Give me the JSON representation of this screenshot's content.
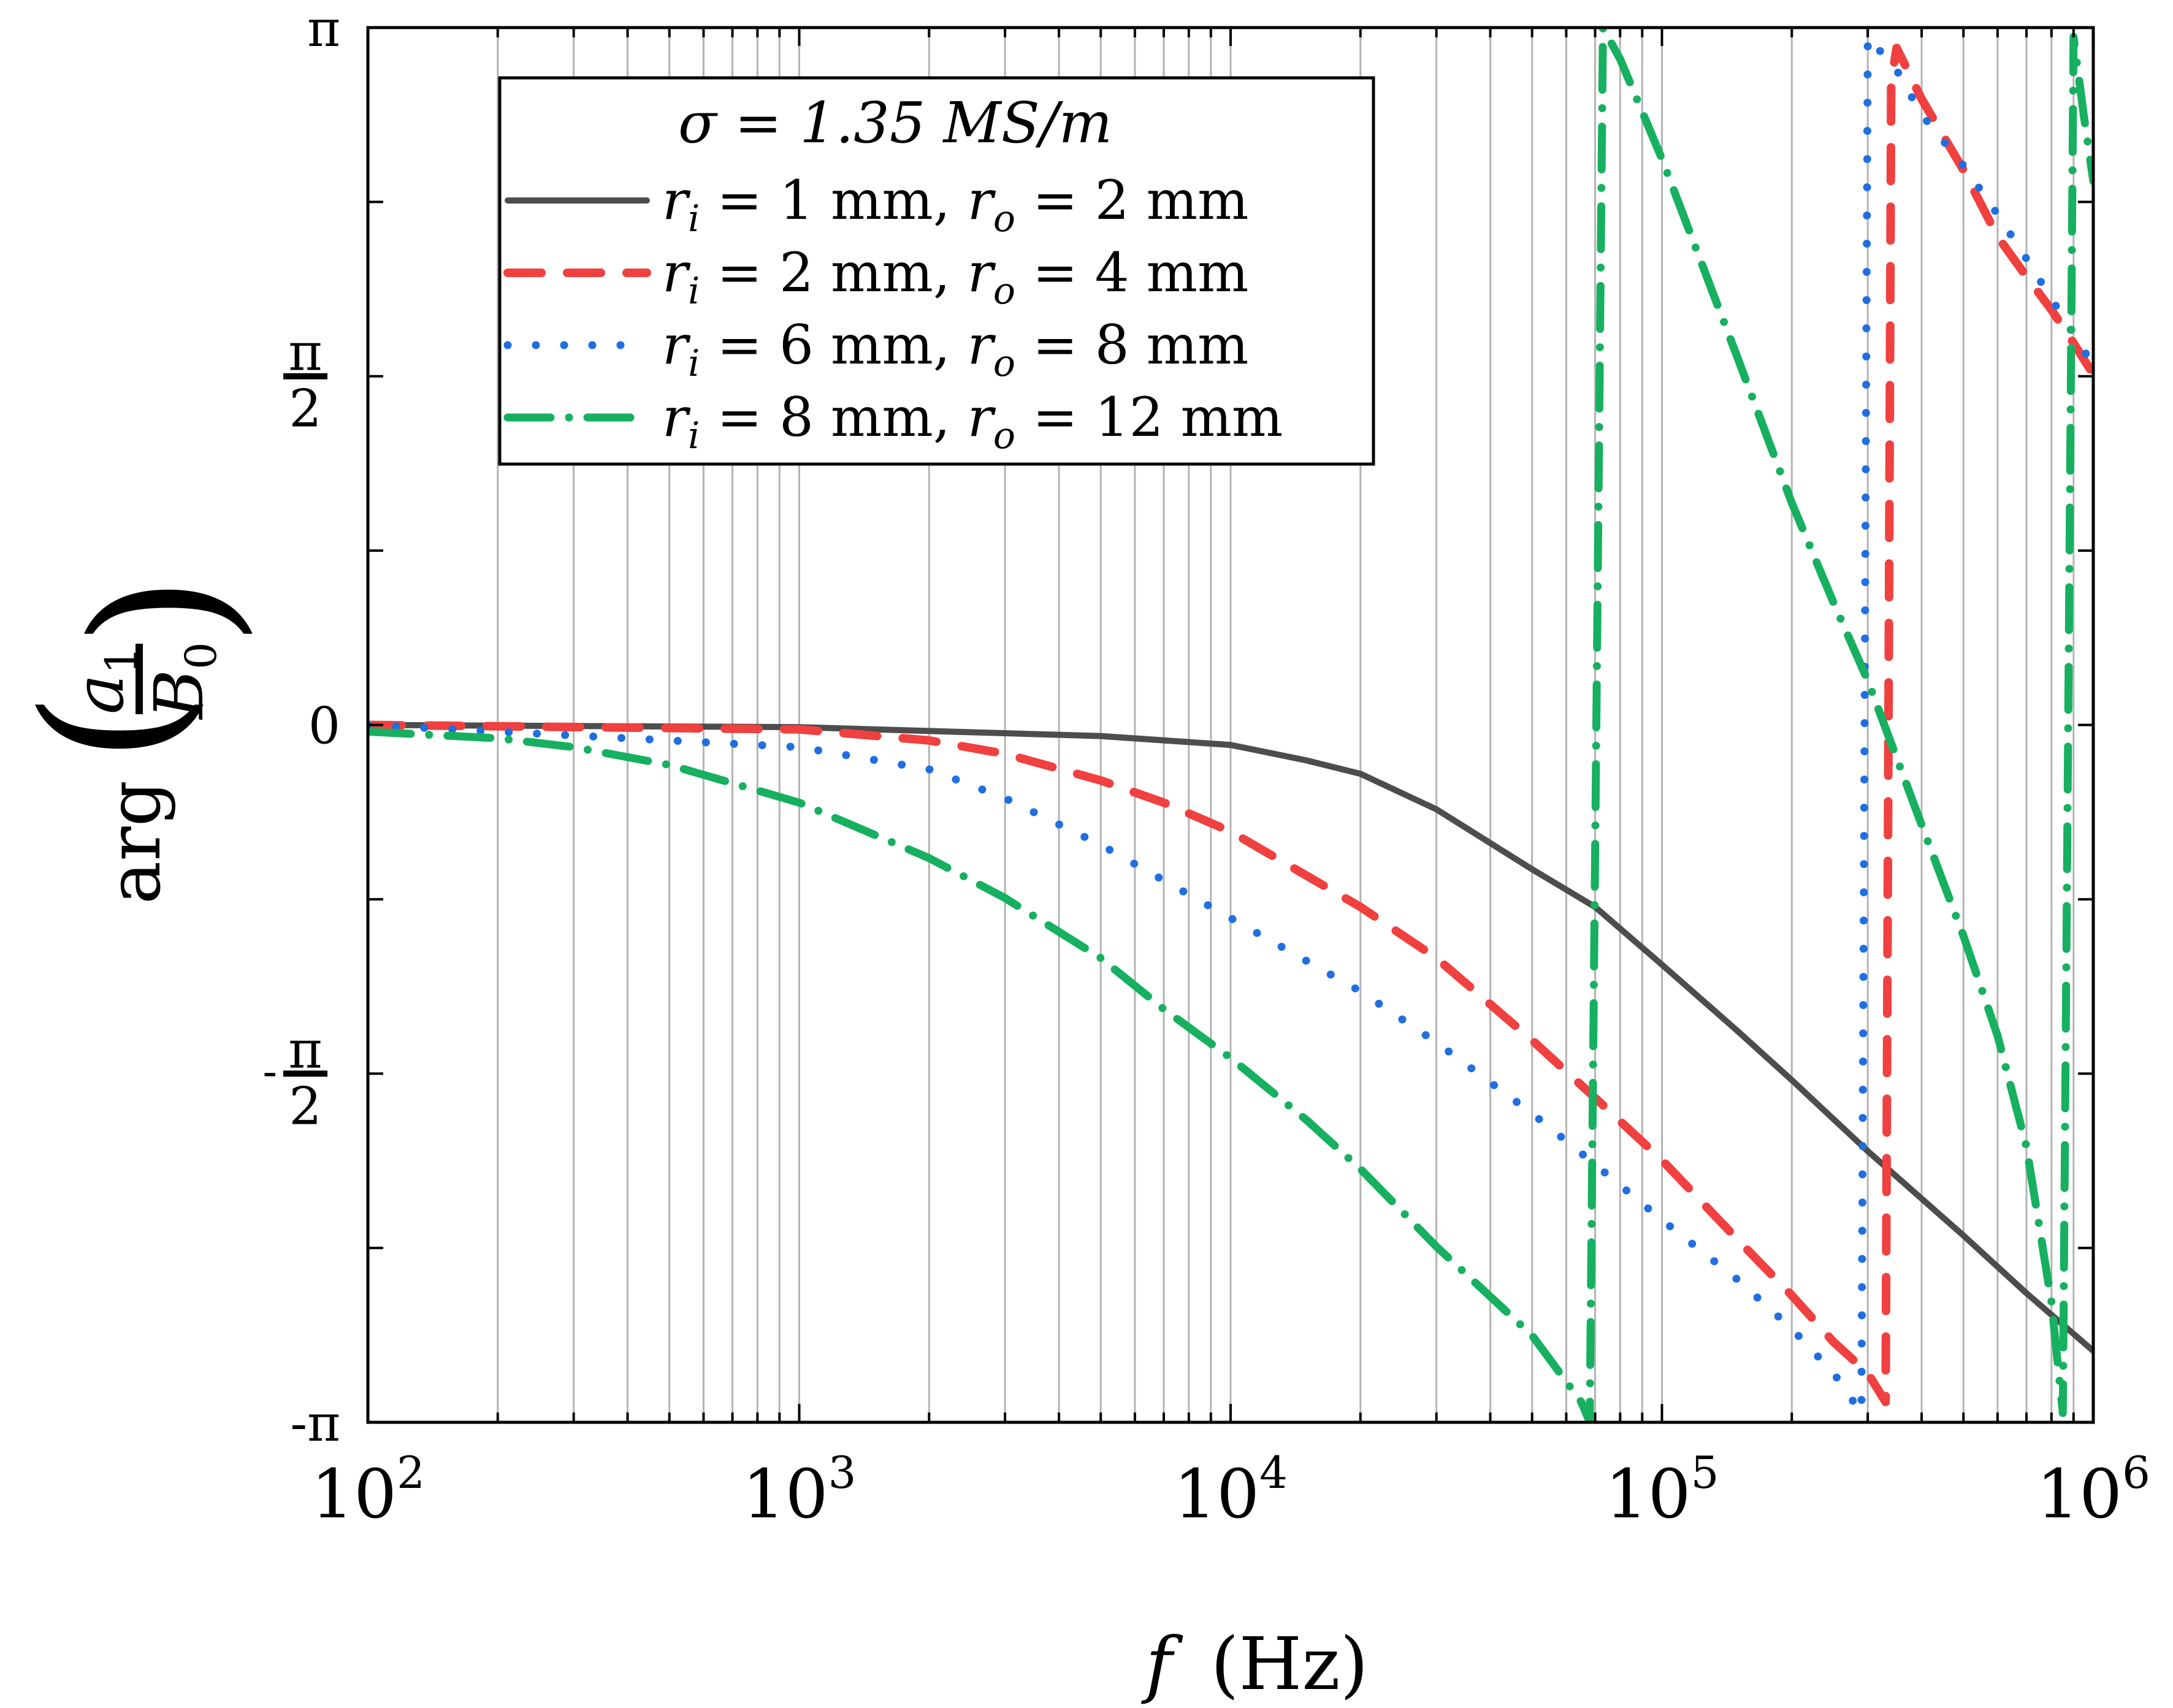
{
  "chart_data": {
    "type": "line",
    "x_scale": "log",
    "xlabel": "f (Hz)",
    "xlabel_var": "f",
    "xlabel_unit": "(Hz)",
    "ylabel": "arg(a1/B0)",
    "ylabel_func": "arg",
    "ylabel_num": "a",
    "ylabel_num_sub": "1",
    "ylabel_den": "B",
    "ylabel_den_sub": "0",
    "xlim": [
      100,
      1000000
    ],
    "ylim": [
      -3.14159,
      3.14159
    ],
    "grid": "vertical minor and major gridlines",
    "x_ticks": [
      {
        "base": "10",
        "exp": "2",
        "value": 100
      },
      {
        "base": "10",
        "exp": "3",
        "value": 1000
      },
      {
        "base": "10",
        "exp": "4",
        "value": 10000
      },
      {
        "base": "10",
        "exp": "5",
        "value": 100000
      },
      {
        "base": "10",
        "exp": "6",
        "value": 1000000
      }
    ],
    "y_ticks": [
      {
        "value": 3.14159,
        "label": "π"
      },
      {
        "value": 1.5708,
        "num": "π",
        "den": "2"
      },
      {
        "value": 0,
        "label": "0"
      },
      {
        "value": -1.5708,
        "sign": "-",
        "num": "π",
        "den": "2"
      },
      {
        "value": -3.14159,
        "label": "-π"
      }
    ],
    "legend_title": "σ = 1.35 MS/m",
    "legend_position": "top-left",
    "series": [
      {
        "name": "r_i = 1 mm, r_o = 2 mm",
        "label_parts": [
          "r",
          "i",
          " = 1 mm, ",
          "r",
          "o",
          " = 2 mm"
        ],
        "color": "#4d4d4d",
        "dash": "solid",
        "points": [
          [
            100,
            0
          ],
          [
            1000,
            -0.01
          ],
          [
            5000,
            -0.05
          ],
          [
            10000,
            -0.09
          ],
          [
            15000,
            -0.16
          ],
          [
            20000,
            -0.22
          ],
          [
            30000,
            -0.38
          ],
          [
            50000,
            -0.65
          ],
          [
            70000,
            -0.82
          ],
          [
            100000,
            -1.08
          ],
          [
            150000,
            -1.38
          ],
          [
            200000,
            -1.6
          ],
          [
            300000,
            -1.92
          ],
          [
            500000,
            -2.3
          ],
          [
            700000,
            -2.56
          ],
          [
            1000000,
            -2.82
          ]
        ]
      },
      {
        "name": "r_i = 2 mm, r_o = 4 mm",
        "label_parts": [
          "r",
          "i",
          " = 2 mm, ",
          "r",
          "o",
          " = 4 mm"
        ],
        "color": "#f04040",
        "dash": "dashed",
        "points": [
          [
            100,
            0
          ],
          [
            1000,
            -0.02
          ],
          [
            2000,
            -0.07
          ],
          [
            3000,
            -0.13
          ],
          [
            5000,
            -0.25
          ],
          [
            7000,
            -0.35
          ],
          [
            10000,
            -0.48
          ],
          [
            20000,
            -0.82
          ],
          [
            30000,
            -1.05
          ],
          [
            50000,
            -1.42
          ],
          [
            70000,
            -1.68
          ],
          [
            100000,
            -1.96
          ],
          [
            150000,
            -2.32
          ],
          [
            200000,
            -2.57
          ],
          [
            250000,
            -2.78
          ],
          [
            300000,
            -2.92
          ],
          [
            330000,
            -3.05
          ],
          [
            340000,
            2.9
          ],
          [
            350000,
            3.05
          ],
          [
            400000,
            2.82
          ],
          [
            500000,
            2.5
          ],
          [
            600000,
            2.2
          ],
          [
            700000,
            2.02
          ],
          [
            800000,
            1.87
          ],
          [
            900000,
            1.72
          ],
          [
            1000000,
            1.58
          ]
        ]
      },
      {
        "name": "r_i = 6 mm, r_o = 8 mm",
        "label_parts": [
          "r",
          "i",
          " = 6 mm, ",
          "r",
          "o",
          " = 8 mm"
        ],
        "color": "#1f6fe0",
        "dash": "dotted",
        "points": [
          [
            100,
            0
          ],
          [
            1000,
            -0.1
          ],
          [
            2000,
            -0.2
          ],
          [
            3000,
            -0.33
          ],
          [
            5000,
            -0.54
          ],
          [
            7000,
            -0.7
          ],
          [
            10000,
            -0.87
          ],
          [
            20000,
            -1.2
          ],
          [
            30000,
            -1.43
          ],
          [
            50000,
            -1.75
          ],
          [
            70000,
            -1.98
          ],
          [
            100000,
            -2.23
          ],
          [
            150000,
            -2.5
          ],
          [
            200000,
            -2.72
          ],
          [
            250000,
            -2.92
          ],
          [
            290000,
            -3.1
          ],
          [
            300000,
            3.1
          ],
          [
            350000,
            2.95
          ],
          [
            400000,
            2.75
          ],
          [
            500000,
            2.52
          ],
          [
            600000,
            2.3
          ],
          [
            700000,
            2.1
          ],
          [
            800000,
            1.92
          ],
          [
            900000,
            1.76
          ],
          [
            1000000,
            1.62
          ]
        ]
      },
      {
        "name": "r_i = 8 mm, r_o = 12 mm",
        "label_parts": [
          "r",
          "i",
          " = 8 mm, ",
          "r",
          "o",
          " = 12 mm"
        ],
        "color": "#16b060",
        "dash": "dashdot",
        "points": [
          [
            100,
            -0.03
          ],
          [
            200,
            -0.06
          ],
          [
            300,
            -0.1
          ],
          [
            500,
            -0.18
          ],
          [
            1000,
            -0.35
          ],
          [
            2000,
            -0.6
          ],
          [
            3000,
            -0.78
          ],
          [
            5000,
            -1.05
          ],
          [
            7000,
            -1.28
          ],
          [
            10000,
            -1.5
          ],
          [
            15000,
            -1.78
          ],
          [
            20000,
            -2.0
          ],
          [
            30000,
            -2.35
          ],
          [
            50000,
            -2.75
          ],
          [
            65000,
            -3.05
          ],
          [
            68000,
            -3.14
          ],
          [
            73000,
            3.14
          ],
          [
            80000,
            3.0
          ],
          [
            100000,
            2.55
          ],
          [
            150000,
            1.65
          ],
          [
            200000,
            1.0
          ],
          [
            250000,
            0.55
          ],
          [
            300000,
            0.2
          ],
          [
            400000,
            -0.45
          ],
          [
            500000,
            -0.95
          ],
          [
            600000,
            -1.4
          ],
          [
            700000,
            -1.9
          ],
          [
            800000,
            -2.6
          ],
          [
            850000,
            -3.1
          ],
          [
            900000,
            3.1
          ],
          [
            950000,
            2.75
          ],
          [
            1000000,
            2.45
          ]
        ]
      }
    ]
  }
}
